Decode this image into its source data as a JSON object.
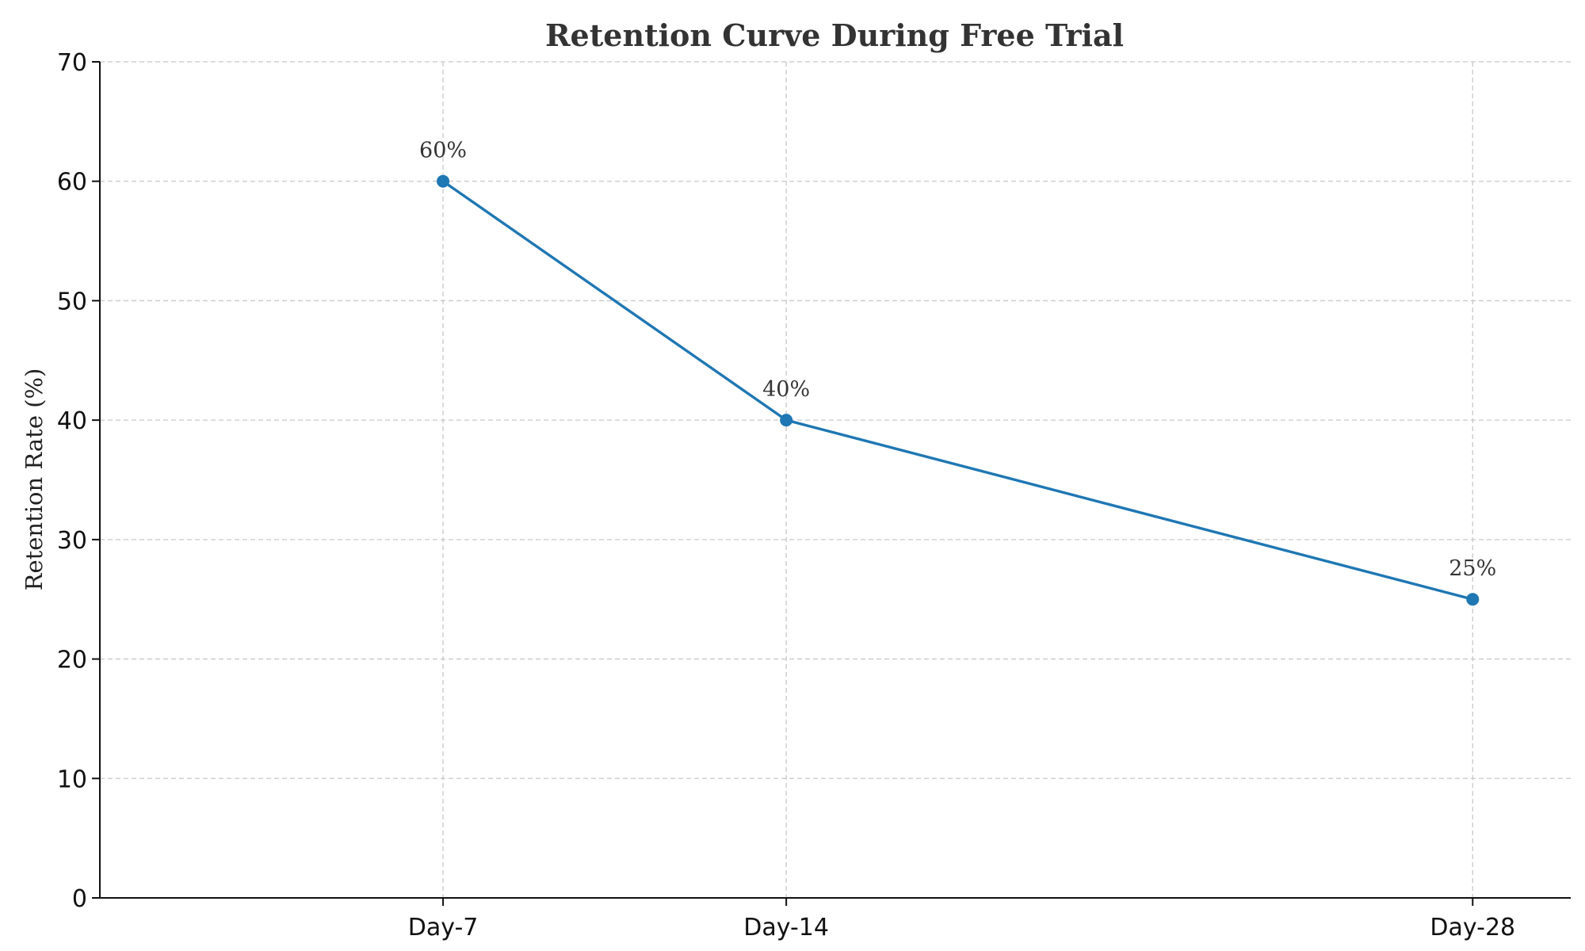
{
  "chart_data": {
    "type": "line",
    "title": "Retention Curve During Free Trial",
    "xlabel": "",
    "ylabel": "Retention Rate (%)",
    "x": [
      7,
      14,
      28
    ],
    "x_tick_labels": [
      "Day-7",
      "Day-14",
      "Day-28"
    ],
    "xlim": [
      0,
      30
    ],
    "ylim": [
      0,
      70
    ],
    "y_ticks": [
      0,
      10,
      20,
      30,
      40,
      50,
      60,
      70
    ],
    "grid": true,
    "series": [
      {
        "values": [
          60,
          40,
          25
        ],
        "data_labels": [
          "60%",
          "40%",
          "25%"
        ],
        "color": "#1f77b4"
      }
    ]
  }
}
